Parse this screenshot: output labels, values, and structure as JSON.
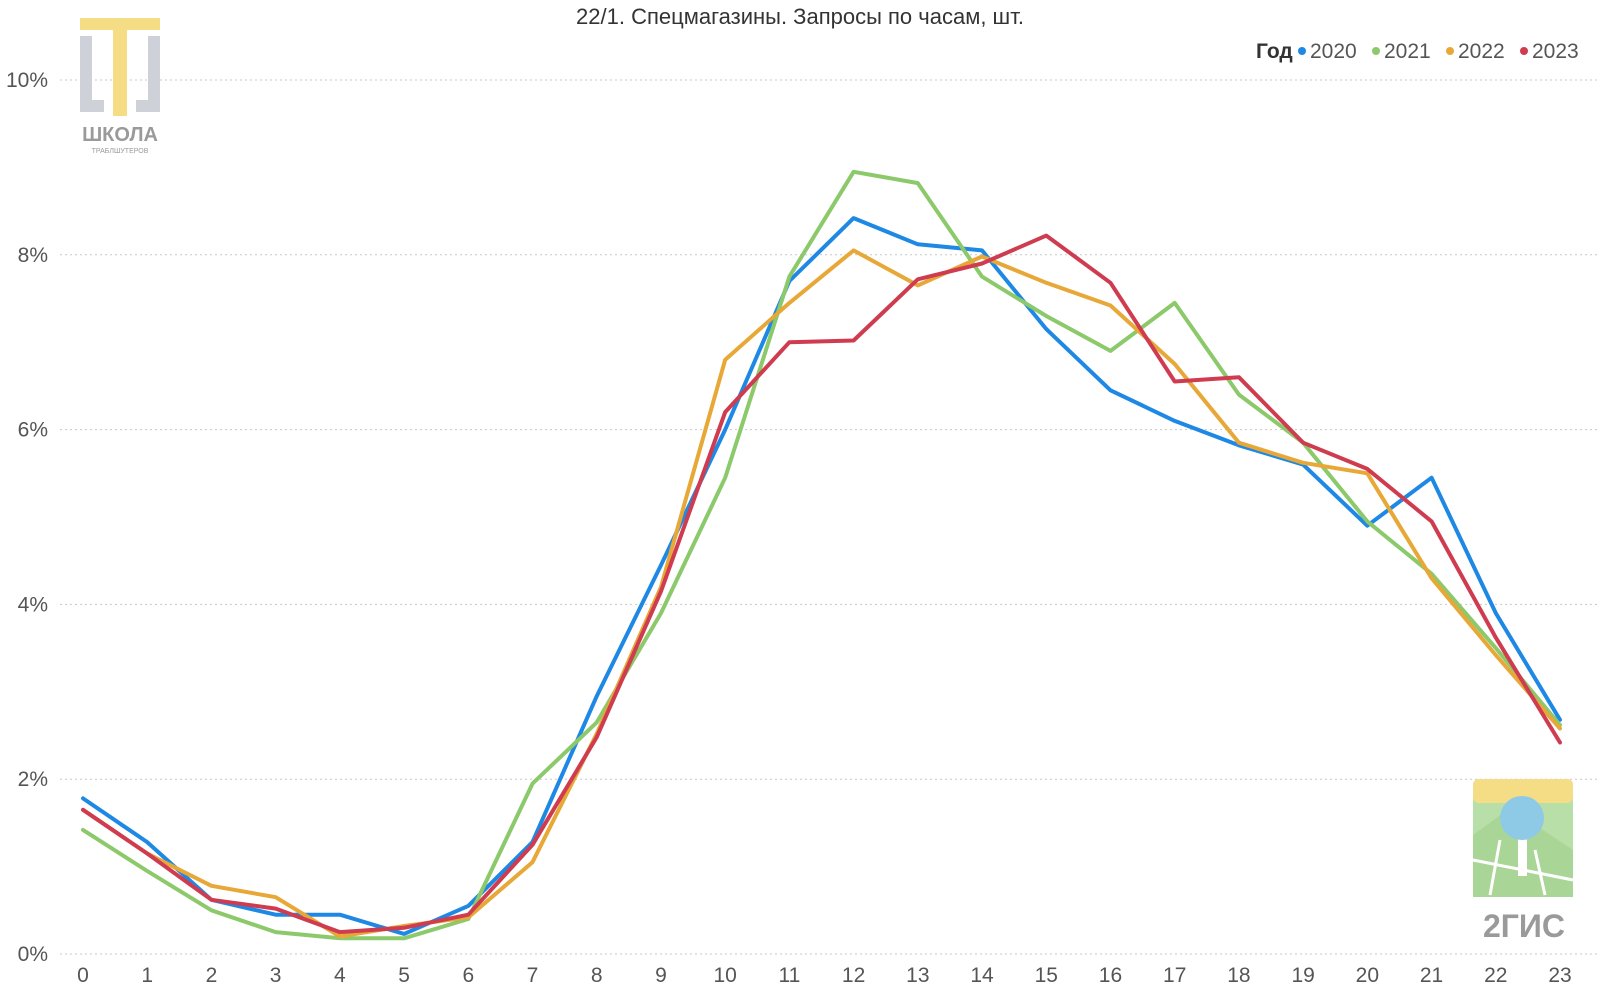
{
  "chart_data": {
    "type": "line",
    "title": "22/1. Спецмагазины. Запросы по часам, шт.",
    "xlabel": "",
    "ylabel": "",
    "x": [
      0,
      1,
      2,
      3,
      4,
      5,
      6,
      7,
      8,
      9,
      10,
      11,
      12,
      13,
      14,
      15,
      16,
      17,
      18,
      19,
      20,
      21,
      22,
      23
    ],
    "x_ticks": [
      "0",
      "1",
      "2",
      "3",
      "4",
      "5",
      "6",
      "7",
      "8",
      "9",
      "10",
      "11",
      "12",
      "13",
      "14",
      "15",
      "16",
      "17",
      "18",
      "19",
      "20",
      "21",
      "22",
      "23"
    ],
    "ylim": [
      0,
      10
    ],
    "y_ticks": [
      0,
      2,
      4,
      6,
      8,
      10
    ],
    "y_tick_labels": [
      "0%",
      "2%",
      "4%",
      "6%",
      "8%",
      "10%"
    ],
    "y_unit": "%",
    "grid": "horizontal",
    "legend": {
      "title": "Год",
      "position": "top-right"
    },
    "series": [
      {
        "name": "2020",
        "color": "#1e88e5",
        "values": [
          1.78,
          1.28,
          0.62,
          0.45,
          0.45,
          0.23,
          0.55,
          1.28,
          2.95,
          4.45,
          6.0,
          7.7,
          8.42,
          8.12,
          8.05,
          7.15,
          6.45,
          6.1,
          5.82,
          5.6,
          4.9,
          5.45,
          3.9,
          2.68
        ]
      },
      {
        "name": "2021",
        "color": "#8bc96a",
        "values": [
          1.42,
          0.95,
          0.5,
          0.25,
          0.18,
          0.18,
          0.4,
          1.95,
          2.65,
          3.9,
          5.45,
          7.75,
          8.95,
          8.82,
          7.75,
          7.3,
          6.9,
          7.45,
          6.4,
          5.85,
          4.95,
          4.35,
          3.5,
          2.62
        ]
      },
      {
        "name": "2022",
        "color": "#e8a838",
        "values": [
          1.65,
          1.15,
          0.78,
          0.65,
          0.2,
          0.32,
          0.42,
          1.05,
          2.52,
          4.2,
          6.8,
          7.45,
          8.05,
          7.65,
          7.98,
          7.68,
          7.42,
          6.75,
          5.85,
          5.62,
          5.5,
          4.3,
          3.42,
          2.58
        ]
      },
      {
        "name": "2023",
        "color": "#cf3c4f",
        "values": [
          1.65,
          1.15,
          0.62,
          0.52,
          0.25,
          0.3,
          0.45,
          1.25,
          2.48,
          4.15,
          6.2,
          7.0,
          7.02,
          7.72,
          7.9,
          8.22,
          7.68,
          6.55,
          6.6,
          5.85,
          5.55,
          4.95,
          3.62,
          2.42
        ]
      }
    ]
  },
  "watermark_logo": {
    "line1": "ШКОЛА",
    "line2": "ТРАБЛШУТЕРОВ"
  },
  "brand_logo": {
    "text": "2ГИС"
  }
}
